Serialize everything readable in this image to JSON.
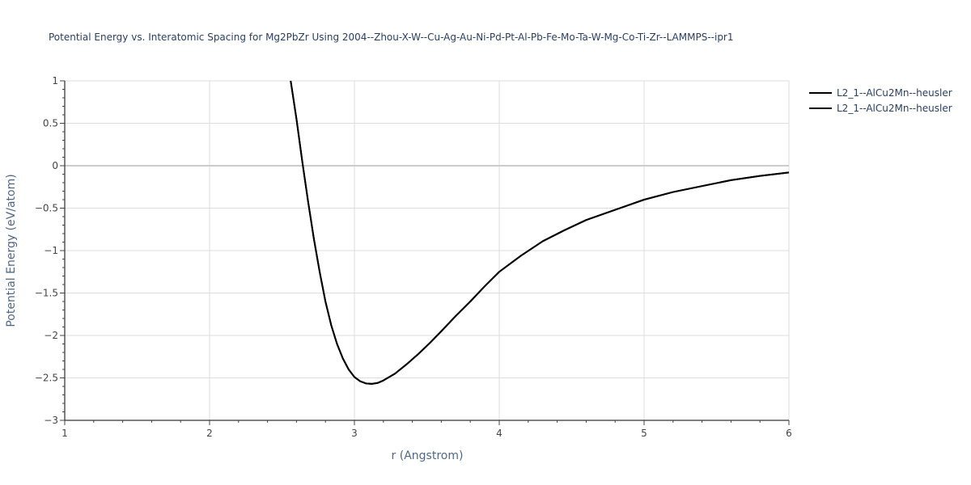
{
  "chart_data": {
    "type": "line",
    "title": "Potential Energy vs. Interatomic Spacing for Mg2PbZr Using 2004--Zhou-X-W--Cu-Ag-Au-Ni-Pd-Pt-Al-Pb-Fe-Mo-Ta-W-Mg-Co-Ti-Zr--LAMMPS--ipr1",
    "xlabel": "r (Angstrom)",
    "ylabel": "Potential Energy (eV/atom)",
    "xlim": [
      1,
      6
    ],
    "ylim": [
      -3,
      1
    ],
    "x_ticks": [
      1,
      2,
      3,
      4,
      5,
      6
    ],
    "x_tick_labels": [
      "1",
      "2",
      "3",
      "4",
      "5",
      "6"
    ],
    "y_ticks": [
      1,
      0.5,
      0,
      -0.5,
      -1,
      -1.5,
      -2,
      -2.5,
      -3
    ],
    "y_tick_labels": [
      "1",
      "0.5",
      "0",
      "−0.5",
      "−1",
      "−1.5",
      "−2",
      "−2.5",
      "−3"
    ],
    "grid": true,
    "legend_position": "top-right",
    "series": [
      {
        "name": "L2_1--AlCu2Mn--heusler",
        "color": "#000000",
        "x": [
          2.56,
          2.6,
          2.64,
          2.68,
          2.72,
          2.76,
          2.8,
          2.84,
          2.88,
          2.92,
          2.96,
          3.0,
          3.04,
          3.08,
          3.12,
          3.16,
          3.2,
          3.28,
          3.36,
          3.44,
          3.52,
          3.6,
          3.7,
          3.8,
          3.9,
          4.0,
          4.15,
          4.3,
          4.45,
          4.6,
          4.8,
          5.0,
          5.2,
          5.4,
          5.6,
          5.8,
          6.0
        ],
        "y": [
          1.0,
          0.55,
          0.05,
          -0.42,
          -0.86,
          -1.25,
          -1.6,
          -1.88,
          -2.1,
          -2.27,
          -2.4,
          -2.49,
          -2.54,
          -2.565,
          -2.57,
          -2.56,
          -2.53,
          -2.45,
          -2.34,
          -2.22,
          -2.09,
          -1.95,
          -1.77,
          -1.6,
          -1.42,
          -1.25,
          -1.06,
          -0.89,
          -0.76,
          -0.64,
          -0.52,
          -0.4,
          -0.31,
          -0.24,
          -0.17,
          -0.12,
          -0.08
        ]
      },
      {
        "name": "L2_1--AlCu2Mn--heusler",
        "color": "#000000",
        "x": [
          2.56,
          2.6,
          2.64,
          2.68,
          2.72,
          2.76,
          2.8,
          2.84,
          2.88,
          2.92,
          2.96,
          3.0,
          3.04,
          3.08,
          3.12,
          3.16,
          3.2,
          3.28,
          3.36,
          3.44,
          3.52,
          3.6,
          3.7,
          3.8,
          3.9,
          4.0,
          4.15,
          4.3,
          4.45,
          4.6,
          4.8,
          5.0,
          5.2,
          5.4,
          5.6,
          5.8,
          6.0
        ],
        "y": [
          1.0,
          0.55,
          0.05,
          -0.42,
          -0.86,
          -1.25,
          -1.6,
          -1.88,
          -2.1,
          -2.27,
          -2.4,
          -2.49,
          -2.54,
          -2.565,
          -2.57,
          -2.56,
          -2.53,
          -2.45,
          -2.34,
          -2.22,
          -2.09,
          -1.95,
          -1.77,
          -1.6,
          -1.42,
          -1.25,
          -1.06,
          -0.89,
          -0.76,
          -0.64,
          -0.52,
          -0.4,
          -0.31,
          -0.24,
          -0.17,
          -0.12,
          -0.08
        ]
      }
    ]
  }
}
